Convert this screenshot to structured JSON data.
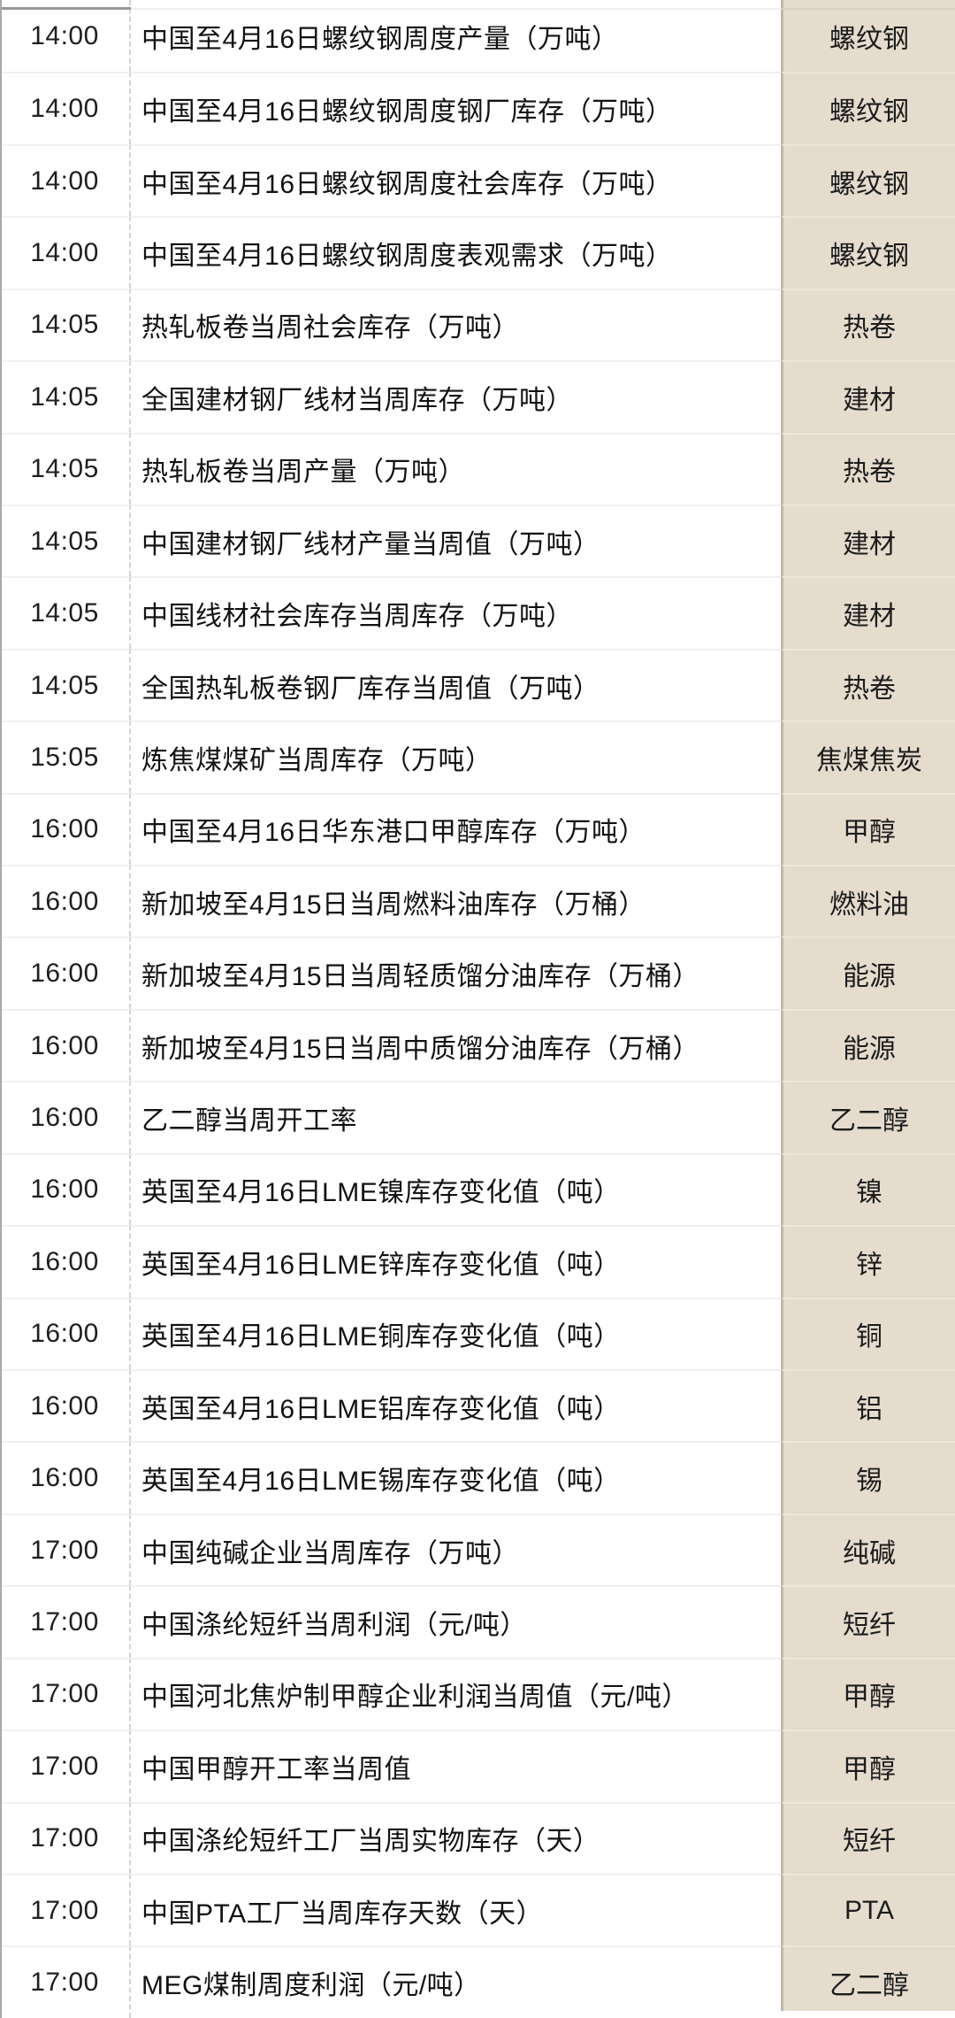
{
  "colors": {
    "category_column_bg": "#e5dcce",
    "category_column_edge": "#c1b7aa",
    "row_separator": "#f1f1f1",
    "text_primary": "#121212"
  },
  "table": {
    "rows": [
      {
        "time": "14:00",
        "event": "中国至4月16日螺纹钢周度产量（万吨）",
        "tag": "螺纹钢"
      },
      {
        "time": "14:00",
        "event": "中国至4月16日螺纹钢周度钢厂库存（万吨）",
        "tag": "螺纹钢"
      },
      {
        "time": "14:00",
        "event": "中国至4月16日螺纹钢周度社会库存（万吨）",
        "tag": "螺纹钢"
      },
      {
        "time": "14:00",
        "event": "中国至4月16日螺纹钢周度表观需求（万吨）",
        "tag": "螺纹钢"
      },
      {
        "time": "14:05",
        "event": "热轧板卷当周社会库存（万吨）",
        "tag": "热卷"
      },
      {
        "time": "14:05",
        "event": "全国建材钢厂线材当周库存（万吨）",
        "tag": "建材"
      },
      {
        "time": "14:05",
        "event": "热轧板卷当周产量（万吨）",
        "tag": "热卷"
      },
      {
        "time": "14:05",
        "event": "中国建材钢厂线材产量当周值（万吨）",
        "tag": "建材"
      },
      {
        "time": "14:05",
        "event": "中国线材社会库存当周库存（万吨）",
        "tag": "建材"
      },
      {
        "time": "14:05",
        "event": "全国热轧板卷钢厂库存当周值（万吨）",
        "tag": "热卷"
      },
      {
        "time": "15:05",
        "event": "炼焦煤煤矿当周库存（万吨）",
        "tag": "焦煤焦炭"
      },
      {
        "time": "16:00",
        "event": "中国至4月16日华东港口甲醇库存（万吨）",
        "tag": "甲醇"
      },
      {
        "time": "16:00",
        "event": "新加坡至4月15日当周燃料油库存（万桶）",
        "tag": "燃料油"
      },
      {
        "time": "16:00",
        "event": "新加坡至4月15日当周轻质馏分油库存（万桶）",
        "tag": "能源"
      },
      {
        "time": "16:00",
        "event": "新加坡至4月15日当周中质馏分油库存（万桶）",
        "tag": "能源"
      },
      {
        "time": "16:00",
        "event": "乙二醇当周开工率",
        "tag": "乙二醇"
      },
      {
        "time": "16:00",
        "event": "英国至4月16日LME镍库存变化值（吨）",
        "tag": "镍"
      },
      {
        "time": "16:00",
        "event": "英国至4月16日LME锌库存变化值（吨）",
        "tag": "锌"
      },
      {
        "time": "16:00",
        "event": "英国至4月16日LME铜库存变化值（吨）",
        "tag": "铜"
      },
      {
        "time": "16:00",
        "event": "英国至4月16日LME铝库存变化值（吨）",
        "tag": "铝"
      },
      {
        "time": "16:00",
        "event": "英国至4月16日LME锡库存变化值（吨）",
        "tag": "锡"
      },
      {
        "time": "17:00",
        "event": "中国纯碱企业当周库存（万吨）",
        "tag": "纯碱"
      },
      {
        "time": "17:00",
        "event": "中国涤纶短纤当周利润（元/吨）",
        "tag": "短纤"
      },
      {
        "time": "17:00",
        "event": "中国河北焦炉制甲醇企业利润当周值（元/吨）",
        "tag": "甲醇"
      },
      {
        "time": "17:00",
        "event": "中国甲醇开工率当周值",
        "tag": "甲醇"
      },
      {
        "time": "17:00",
        "event": "中国涤纶短纤工厂当周实物库存（天）",
        "tag": "短纤"
      },
      {
        "time": "17:00",
        "event": "中国PTA工厂当周库存天数（天）",
        "tag": "PTA"
      },
      {
        "time": "17:00",
        "event": "MEG煤制周度利润（元/吨）",
        "tag": "乙二醇"
      }
    ]
  }
}
